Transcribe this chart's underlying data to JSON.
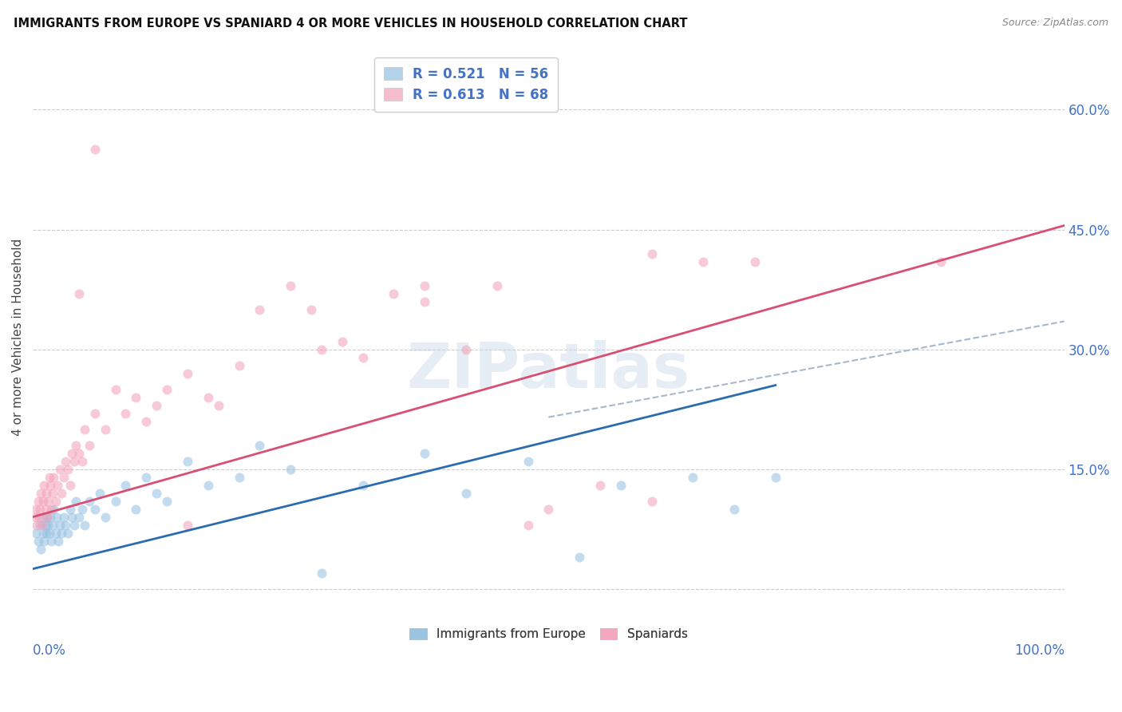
{
  "title": "IMMIGRANTS FROM EUROPE VS SPANIARD 4 OR MORE VEHICLES IN HOUSEHOLD CORRELATION CHART",
  "source": "Source: ZipAtlas.com",
  "ylabel": "4 or more Vehicles in Household",
  "ytick_labels": [
    "",
    "15.0%",
    "30.0%",
    "45.0%",
    "60.0%"
  ],
  "ytick_values": [
    0.0,
    0.15,
    0.3,
    0.45,
    0.6
  ],
  "xlim": [
    0.0,
    1.0
  ],
  "ylim": [
    -0.03,
    0.66
  ],
  "legend_blue_label": "R = 0.521   N = 56",
  "legend_pink_label": "R = 0.613   N = 68",
  "blue_color": "#92bfe0",
  "pink_color": "#f4a0b8",
  "blue_line_color": "#2b6cb0",
  "pink_line_color": "#d94f72",
  "dashed_line_color": "#a8b8cc",
  "watermark": "ZIPatlas",
  "blue_scatter_x": [
    0.003,
    0.005,
    0.007,
    0.008,
    0.009,
    0.01,
    0.011,
    0.012,
    0.013,
    0.014,
    0.015,
    0.016,
    0.017,
    0.018,
    0.019,
    0.02,
    0.022,
    0.023,
    0.025,
    0.026,
    0.028,
    0.03,
    0.032,
    0.034,
    0.036,
    0.038,
    0.04,
    0.042,
    0.045,
    0.048,
    0.05,
    0.055,
    0.06,
    0.065,
    0.07,
    0.08,
    0.09,
    0.1,
    0.11,
    0.12,
    0.13,
    0.15,
    0.17,
    0.2,
    0.22,
    0.25,
    0.28,
    0.32,
    0.38,
    0.42,
    0.48,
    0.53,
    0.57,
    0.64,
    0.68,
    0.72
  ],
  "blue_scatter_y": [
    0.07,
    0.06,
    0.08,
    0.05,
    0.09,
    0.07,
    0.06,
    0.08,
    0.07,
    0.09,
    0.08,
    0.07,
    0.09,
    0.06,
    0.08,
    0.1,
    0.07,
    0.09,
    0.06,
    0.08,
    0.07,
    0.09,
    0.08,
    0.07,
    0.1,
    0.09,
    0.08,
    0.11,
    0.09,
    0.1,
    0.08,
    0.11,
    0.1,
    0.12,
    0.09,
    0.11,
    0.13,
    0.1,
    0.14,
    0.12,
    0.11,
    0.16,
    0.13,
    0.14,
    0.18,
    0.15,
    0.02,
    0.13,
    0.17,
    0.12,
    0.16,
    0.04,
    0.13,
    0.14,
    0.1,
    0.14
  ],
  "pink_scatter_x": [
    0.002,
    0.003,
    0.004,
    0.005,
    0.006,
    0.007,
    0.008,
    0.009,
    0.01,
    0.011,
    0.012,
    0.013,
    0.014,
    0.015,
    0.016,
    0.017,
    0.018,
    0.019,
    0.02,
    0.022,
    0.024,
    0.026,
    0.028,
    0.03,
    0.032,
    0.034,
    0.036,
    0.038,
    0.04,
    0.042,
    0.045,
    0.048,
    0.05,
    0.055,
    0.06,
    0.07,
    0.08,
    0.09,
    0.1,
    0.11,
    0.12,
    0.13,
    0.15,
    0.17,
    0.18,
    0.2,
    0.22,
    0.25,
    0.28,
    0.3,
    0.32,
    0.35,
    0.38,
    0.42,
    0.45,
    0.5,
    0.55,
    0.6,
    0.65,
    0.7,
    0.38,
    0.48,
    0.27,
    0.15,
    0.06,
    0.045,
    0.88,
    0.6
  ],
  "pink_scatter_y": [
    0.09,
    0.1,
    0.08,
    0.11,
    0.09,
    0.1,
    0.12,
    0.08,
    0.11,
    0.13,
    0.1,
    0.12,
    0.09,
    0.11,
    0.14,
    0.13,
    0.1,
    0.12,
    0.14,
    0.11,
    0.13,
    0.15,
    0.12,
    0.14,
    0.16,
    0.15,
    0.13,
    0.17,
    0.16,
    0.18,
    0.17,
    0.16,
    0.2,
    0.18,
    0.22,
    0.2,
    0.25,
    0.22,
    0.24,
    0.21,
    0.23,
    0.25,
    0.27,
    0.24,
    0.23,
    0.28,
    0.35,
    0.38,
    0.3,
    0.31,
    0.29,
    0.37,
    0.38,
    0.3,
    0.38,
    0.1,
    0.13,
    0.11,
    0.41,
    0.41,
    0.36,
    0.08,
    0.35,
    0.08,
    0.55,
    0.37,
    0.41,
    0.42
  ],
  "blue_line": {
    "x0": 0.0,
    "y0": 0.025,
    "x1": 0.72,
    "y1": 0.255
  },
  "pink_line": {
    "x0": 0.0,
    "y0": 0.09,
    "x1": 1.0,
    "y1": 0.455
  },
  "dashed_line": {
    "x0": 0.5,
    "y0": 0.215,
    "x1": 1.0,
    "y1": 0.335
  }
}
